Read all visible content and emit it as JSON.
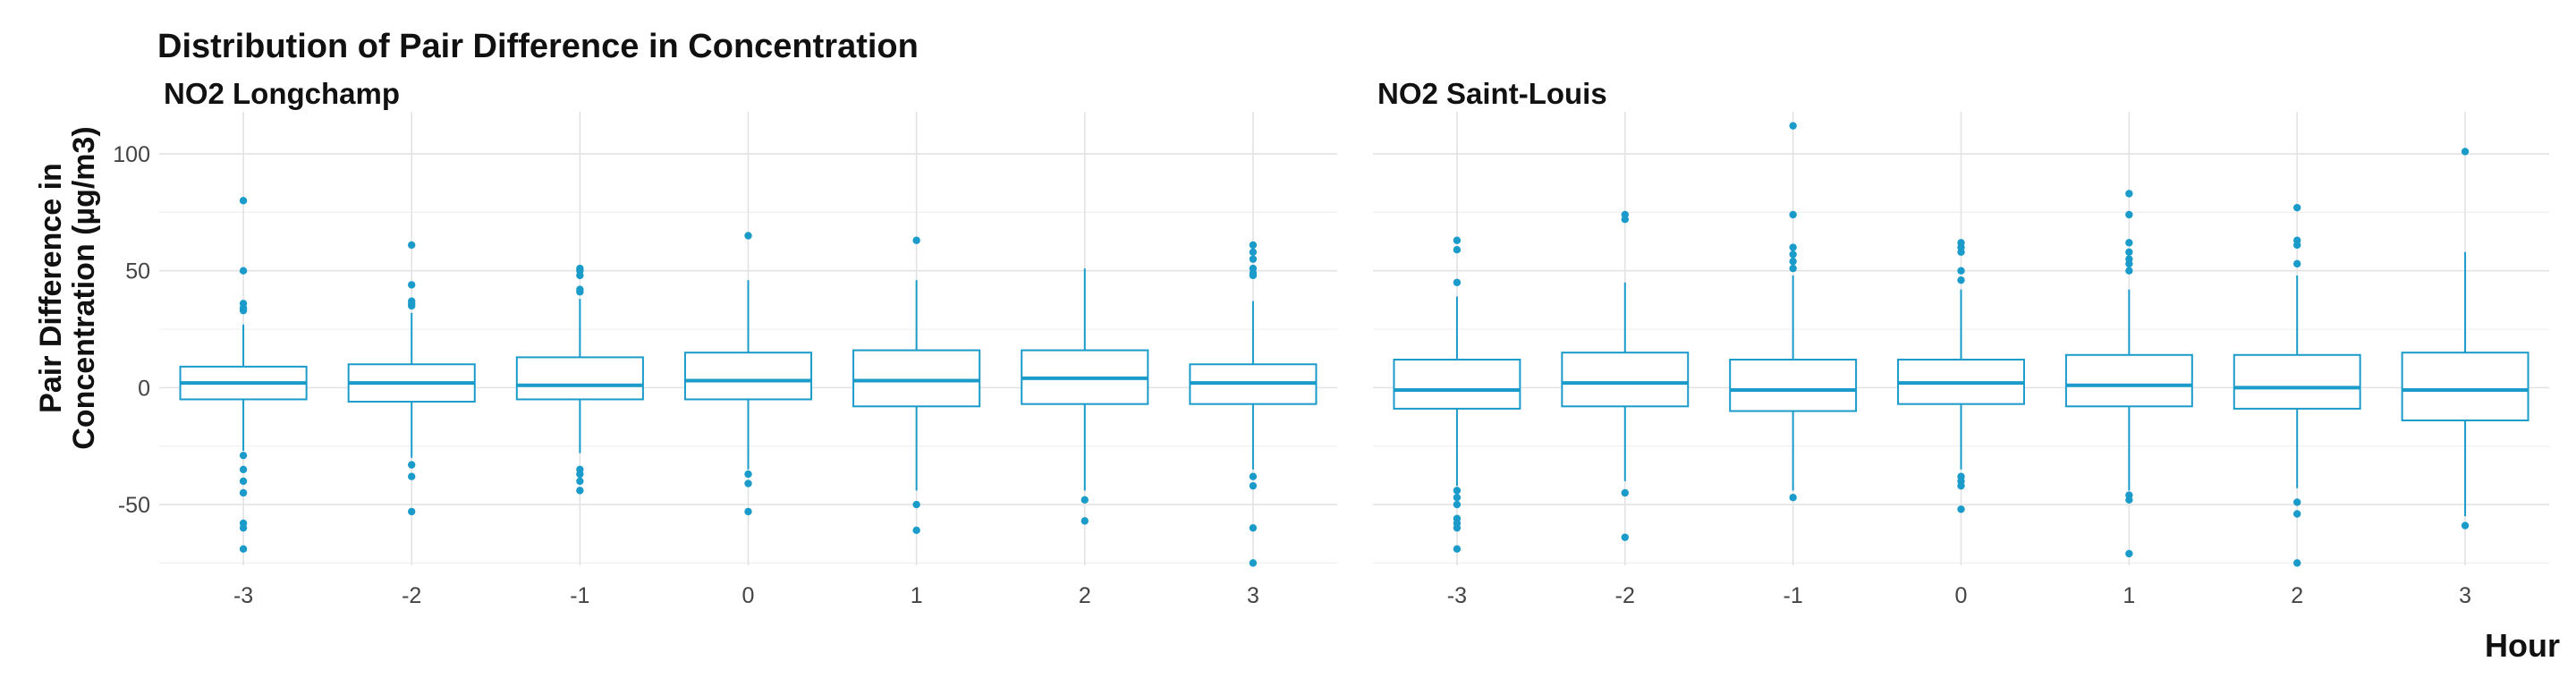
{
  "chart_data": {
    "type": "box",
    "title": "Distribution of Pair Difference in Concentration",
    "xlabel": "Hour",
    "ylabel_lines": [
      "Pair Difference in",
      "Concentration (µg/m3)"
    ],
    "categories": [
      "-3",
      "-2",
      "-1",
      "0",
      "1",
      "2",
      "3"
    ],
    "ylim": [
      -76,
      118
    ],
    "yticks": [
      -50,
      0,
      50,
      100
    ],
    "y_tick_labels": [
      "-50",
      "0",
      "50",
      "100"
    ],
    "grid": true,
    "box_color": "#1a9bc9",
    "panels": [
      {
        "title": "NO2 Longchamp",
        "boxes": [
          {
            "x": "-3",
            "q1": -5,
            "median": 2,
            "q3": 9,
            "whisker_low": -27,
            "whisker_high": 27,
            "outliers": [
              80,
              50,
              36,
              34,
              33,
              -29,
              -35,
              -40,
              -45,
              -58,
              -60,
              -69
            ]
          },
          {
            "x": "-2",
            "q1": -6,
            "median": 2,
            "q3": 10,
            "whisker_low": -30,
            "whisker_high": 32,
            "outliers": [
              61,
              44,
              37,
              36,
              35,
              -33,
              -38,
              -53
            ]
          },
          {
            "x": "-1",
            "q1": -5,
            "median": 1,
            "q3": 13,
            "whisker_low": -28,
            "whisker_high": 38,
            "outliers": [
              51,
              50,
              48,
              42,
              41,
              -35,
              -37,
              -40,
              -44
            ]
          },
          {
            "x": "0",
            "q1": -5,
            "median": 3,
            "q3": 15,
            "whisker_low": -35,
            "whisker_high": 46,
            "outliers": [
              65,
              -37,
              -41,
              -53
            ]
          },
          {
            "x": "1",
            "q1": -8,
            "median": 3,
            "q3": 16,
            "whisker_low": -44,
            "whisker_high": 46,
            "outliers": [
              63,
              -50,
              -61
            ]
          },
          {
            "x": "2",
            "q1": -7,
            "median": 4,
            "q3": 16,
            "whisker_low": -44,
            "whisker_high": 51,
            "outliers": [
              -48,
              -57
            ]
          },
          {
            "x": "3",
            "q1": -7,
            "median": 2,
            "q3": 10,
            "whisker_low": -35,
            "whisker_high": 37,
            "outliers": [
              61,
              58,
              55,
              51,
              49,
              48,
              -38,
              -42,
              -60,
              -75
            ]
          }
        ]
      },
      {
        "title": "NO2 Saint-Louis",
        "boxes": [
          {
            "x": "-3",
            "q1": -9,
            "median": -1,
            "q3": 12,
            "whisker_low": -42,
            "whisker_high": 39,
            "outliers": [
              63,
              59,
              45,
              -44,
              -47,
              -50,
              -56,
              -58,
              -60,
              -69
            ]
          },
          {
            "x": "-2",
            "q1": -8,
            "median": 2,
            "q3": 15,
            "whisker_low": -40,
            "whisker_high": 45,
            "outliers": [
              74,
              72,
              -45,
              -64
            ]
          },
          {
            "x": "-1",
            "q1": -10,
            "median": -1,
            "q3": 12,
            "whisker_low": -44,
            "whisker_high": 48,
            "outliers": [
              112,
              74,
              60,
              57,
              54,
              51,
              -47
            ]
          },
          {
            "x": "0",
            "q1": -7,
            "median": 2,
            "q3": 12,
            "whisker_low": -35,
            "whisker_high": 42,
            "outliers": [
              62,
              60,
              58,
              50,
              46,
              -38,
              -40,
              -42,
              -52
            ]
          },
          {
            "x": "1",
            "q1": -8,
            "median": 1,
            "q3": 14,
            "whisker_low": -44,
            "whisker_high": 42,
            "outliers": [
              83,
              74,
              62,
              58,
              55,
              53,
              50,
              -46,
              -48,
              -71
            ]
          },
          {
            "x": "2",
            "q1": -9,
            "median": 0,
            "q3": 14,
            "whisker_low": -43,
            "whisker_high": 48,
            "outliers": [
              77,
              63,
              61,
              53,
              -49,
              -54,
              -75
            ]
          },
          {
            "x": "3",
            "q1": -14,
            "median": -1,
            "q3": 15,
            "whisker_low": -55,
            "whisker_high": 58,
            "outliers": [
              101,
              -59
            ]
          }
        ]
      }
    ]
  }
}
